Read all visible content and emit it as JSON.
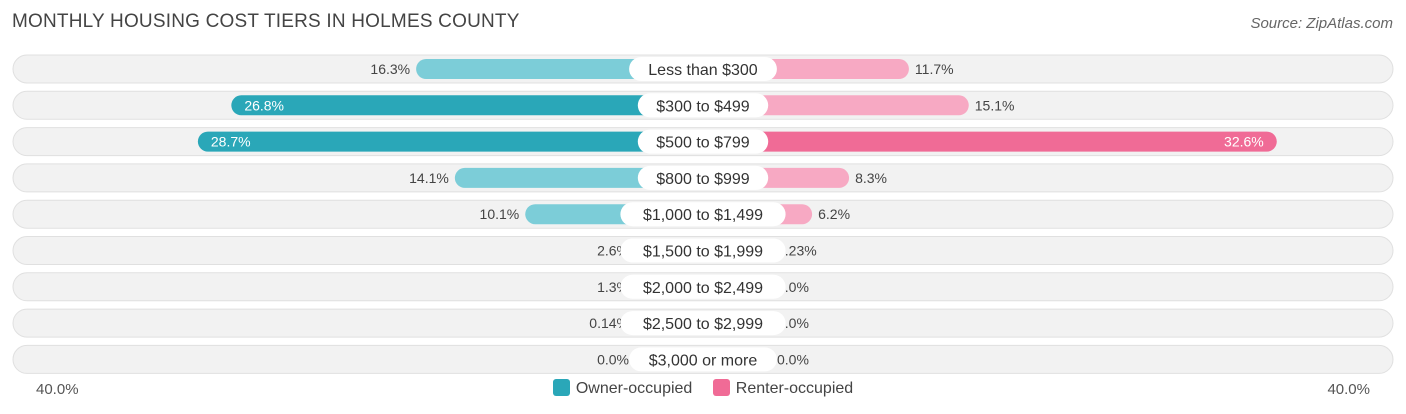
{
  "title": "MONTHLY HOUSING COST TIERS IN HOLMES COUNTY",
  "source": "Source: ZipAtlas.com",
  "axis": {
    "left_label": "40.0%",
    "right_label": "40.0%"
  },
  "legend": {
    "owner": "Owner-occupied",
    "renter": "Renter-occupied"
  },
  "colors": {
    "owner_strong": "#2aa7b8",
    "owner_light": "#7ccdd8",
    "renter_strong": "#f06b96",
    "renter_light": "#f7a9c3",
    "row_bg": "#f2f2f2",
    "row_border": "#e0e0e0"
  },
  "chart_data": {
    "type": "bar",
    "orientation": "diverging-horizontal",
    "title": "MONTHLY HOUSING COST TIERS IN HOLMES COUNTY",
    "xlim": [
      -40,
      40
    ],
    "categories": [
      "Less than $300",
      "$300 to $499",
      "$500 to $799",
      "$800 to $999",
      "$1,000 to $1,499",
      "$1,500 to $1,999",
      "$2,000 to $2,499",
      "$2,500 to $2,999",
      "$3,000 or more"
    ],
    "series": [
      {
        "name": "Owner-occupied",
        "values": [
          16.3,
          26.8,
          28.7,
          14.1,
          10.1,
          2.6,
          1.3,
          0.14,
          0.0
        ],
        "labels": [
          "16.3%",
          "26.8%",
          "28.7%",
          "14.1%",
          "10.1%",
          "2.6%",
          "1.3%",
          "0.14%",
          "0.0%"
        ]
      },
      {
        "name": "Renter-occupied",
        "values": [
          11.7,
          15.1,
          32.6,
          8.3,
          6.2,
          0.23,
          0.0,
          0.0,
          0.0
        ],
        "labels": [
          "11.7%",
          "15.1%",
          "32.6%",
          "8.3%",
          "6.2%",
          "0.23%",
          "0.0%",
          "0.0%",
          "0.0%"
        ]
      }
    ],
    "legend_position": "bottom-center"
  }
}
